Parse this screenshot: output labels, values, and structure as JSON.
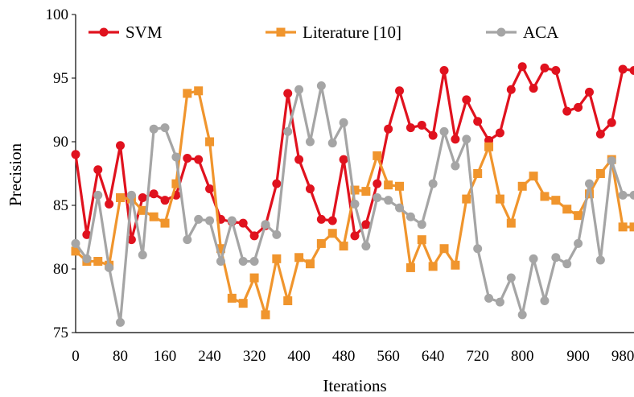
{
  "chart_data": {
    "type": "line",
    "xlabel": "Iterations",
    "ylabel": "Precision",
    "ylim": [
      75,
      100
    ],
    "yticks": [
      75,
      80,
      85,
      90,
      95,
      100
    ],
    "xticks": [
      0,
      80,
      160,
      240,
      320,
      400,
      480,
      560,
      640,
      720,
      800,
      900,
      980
    ],
    "xlim": [
      0,
      1000
    ],
    "grid": false,
    "legend": "top",
    "x": [
      0,
      20,
      40,
      60,
      80,
      100,
      120,
      140,
      160,
      180,
      200,
      220,
      240,
      260,
      280,
      300,
      320,
      340,
      360,
      380,
      400,
      420,
      440,
      460,
      480,
      500,
      520,
      540,
      560,
      580,
      600,
      620,
      640,
      660,
      680,
      700,
      720,
      740,
      760,
      780,
      800,
      820,
      840,
      860,
      880,
      900,
      920,
      940,
      960,
      980,
      1000
    ],
    "series": [
      {
        "name": "SVM",
        "color": "#e0121e",
        "marker": "circle",
        "values": [
          89.0,
          82.7,
          87.8,
          85.1,
          89.7,
          82.3,
          85.6,
          85.9,
          85.4,
          85.8,
          88.7,
          88.6,
          86.3,
          83.9,
          83.7,
          83.6,
          82.6,
          83.4,
          86.7,
          93.8,
          88.6,
          86.3,
          83.9,
          83.8,
          88.6,
          82.6,
          83.5,
          86.7,
          91.0,
          94.0,
          91.1,
          91.3,
          90.5,
          95.6,
          90.2,
          93.3,
          91.6,
          90.1,
          90.7,
          94.1,
          95.9,
          94.2,
          95.8,
          95.6,
          92.4,
          92.7,
          93.9,
          90.6,
          91.5,
          95.7,
          95.6
        ]
      },
      {
        "name": "Literature [10]",
        "color": "#f0952d",
        "marker": "square",
        "values": [
          81.4,
          80.6,
          80.6,
          80.3,
          85.6,
          85.5,
          84.6,
          84.1,
          83.6,
          86.7,
          93.8,
          94.0,
          90.0,
          81.6,
          77.7,
          77.3,
          79.3,
          76.4,
          80.8,
          77.5,
          80.9,
          80.4,
          82.0,
          82.8,
          81.8,
          86.2,
          86.1,
          88.9,
          86.6,
          86.5,
          80.1,
          82.3,
          80.2,
          81.6,
          80.3,
          85.5,
          87.5,
          89.6,
          85.5,
          83.6,
          86.5,
          87.3,
          85.7,
          85.4,
          84.7,
          84.2,
          85.9,
          87.5,
          88.6,
          83.3,
          83.3
        ]
      },
      {
        "name": "ACA",
        "color": "#a5a5a5",
        "marker": "circle",
        "values": [
          82.0,
          80.8,
          85.8,
          80.1,
          75.8,
          85.8,
          81.1,
          91.0,
          91.1,
          88.8,
          82.3,
          83.9,
          83.8,
          80.6,
          83.8,
          80.6,
          80.6,
          83.5,
          82.7,
          90.8,
          94.1,
          90.0,
          94.4,
          89.9,
          91.5,
          85.1,
          81.8,
          85.6,
          85.4,
          84.8,
          84.1,
          83.5,
          86.7,
          90.8,
          88.1,
          90.2,
          81.6,
          77.7,
          77.4,
          79.3,
          76.4,
          80.8,
          77.5,
          80.9,
          80.4,
          82.0,
          86.7,
          80.7,
          88.5,
          85.8,
          85.8
        ]
      }
    ]
  }
}
